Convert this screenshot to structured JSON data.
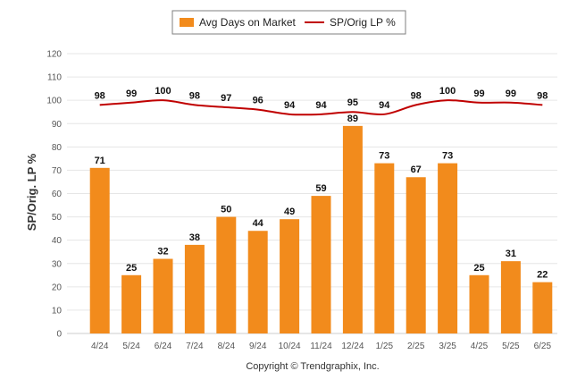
{
  "chart_data": {
    "type": "bar",
    "categories": [
      "4/24",
      "5/24",
      "6/24",
      "7/24",
      "8/24",
      "9/24",
      "10/24",
      "11/24",
      "12/24",
      "1/25",
      "2/25",
      "3/25",
      "4/25",
      "5/25",
      "6/25"
    ],
    "series": [
      {
        "name": "Avg Days on Market",
        "type": "bar",
        "color": "#f28b1c",
        "values": [
          71,
          25,
          32,
          38,
          50,
          44,
          49,
          59,
          89,
          73,
          67,
          73,
          25,
          31,
          22
        ]
      },
      {
        "name": "SP/Orig LP %",
        "type": "line",
        "color": "#c00000",
        "values": [
          98,
          99,
          100,
          98,
          97,
          96,
          94,
          94,
          95,
          94,
          98,
          100,
          99,
          99,
          98
        ]
      }
    ],
    "ylabel": "SP/Orig. LP %",
    "ylim": [
      0,
      120
    ],
    "yticks": [
      0,
      10,
      20,
      30,
      40,
      50,
      60,
      70,
      80,
      90,
      100,
      110,
      120
    ],
    "grid": true,
    "legend_position": "top-center",
    "footer": "Copyright © Trendgraphix, Inc."
  }
}
